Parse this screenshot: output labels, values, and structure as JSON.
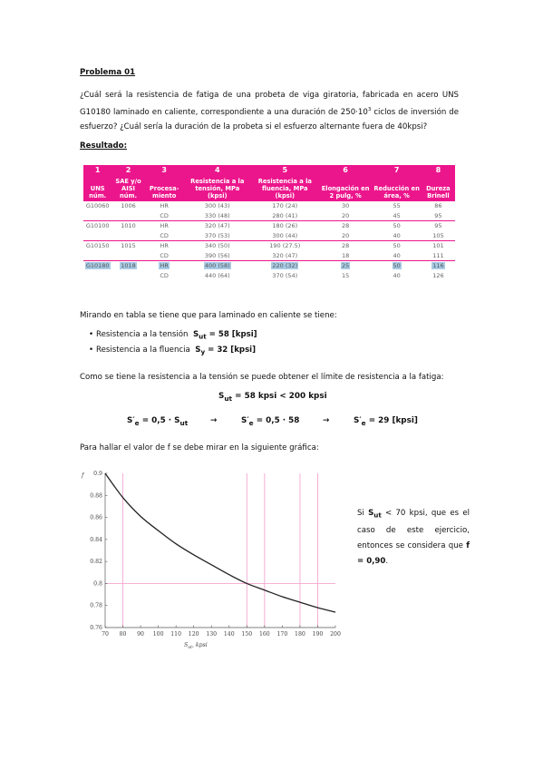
{
  "title": "Problema 01",
  "question": {
    "part1": "¿Cuál será la resistencia de fatiga de una probeta de viga giratoria, fabricada en acero UNS G10180 laminado en caliente, correspondiente a una duración de 250·10",
    "sup": "3",
    "part2": " ciclos de inversión de esfuerzo? ¿Cuál sería la duración de la probeta si el esfuerzo alternante fuera de 40kpsi?"
  },
  "result_heading": "Resultado:",
  "table": {
    "numbers": [
      "1",
      "2",
      "3",
      "4",
      "5",
      "6",
      "7",
      "8"
    ],
    "headers": [
      "UNS núm.",
      "SAE y/o AISI núm.",
      "Procesa-miento",
      "Resistencia a la tensión, MPa (kpsi)",
      "Resistencia a la fluencia, MPa (kpsi)",
      "Elongación en 2 pulg, %",
      "Reducción en área, %",
      "Dureza Brinell"
    ],
    "rows": [
      [
        "G10060",
        "1006",
        "HR",
        "300 (43)",
        "170 (24)",
        "30",
        "55",
        "86"
      ],
      [
        "",
        "",
        "CD",
        "330 (48)",
        "280 (41)",
        "20",
        "45",
        "95"
      ],
      [
        "G10100",
        "1010",
        "HR",
        "320 (47)",
        "180 (26)",
        "28",
        "50",
        "95"
      ],
      [
        "",
        "",
        "CD",
        "370 (53)",
        "300 (44)",
        "20",
        "40",
        "105"
      ],
      [
        "G10150",
        "1015",
        "HR",
        "340 (50)",
        "190 (27.5)",
        "28",
        "50",
        "101"
      ],
      [
        "",
        "",
        "CD",
        "390 (56)",
        "320 (47)",
        "18",
        "40",
        "111"
      ],
      [
        "G10180",
        "1018",
        "HR",
        "400 (58)",
        "220 (32)",
        "25",
        "50",
        "116"
      ],
      [
        "",
        "",
        "CD",
        "440 (64)",
        "370 (54)",
        "15",
        "40",
        "126"
      ]
    ]
  },
  "text_lookup": "Mirando en tabla se tiene que para laminado en caliente se tiene:",
  "bullets": [
    {
      "label": "Resistencia a la tensión",
      "sym": "S",
      "sub": "ut",
      "val": " = 58 [kpsi]"
    },
    {
      "label": "Resistencia a la fluencia",
      "sym": "S",
      "sub": "y",
      "val": " = 32 [kpsi]"
    }
  ],
  "text_fatigue": "Como se tiene la resistencia a la tensión se puede obtener el límite de resistencia a la fatiga:",
  "eq1": {
    "sym": "S",
    "sub": "ut",
    "rest": " = 58 kpsi  < 200 kpsi"
  },
  "eq2": [
    {
      "lhs": "S′",
      "sub": "e",
      "rhs": " = 0,5 · S",
      "rsub": "ut"
    },
    {
      "lhs": "S′",
      "sub": "e",
      "rhs": " = 0,5 · 58",
      "rsub": ""
    },
    {
      "lhs": "S′",
      "sub": "e",
      "rhs": " = 29 [kpsi]",
      "rsub": ""
    }
  ],
  "arrow": "→",
  "text_graph": "Para hallar el valor de f se debe mirar en la siguiente gráfica:",
  "chart_data": {
    "type": "line",
    "ylabel": "f",
    "xlabel": "S_ut, kpsi",
    "xlabel_main": "S",
    "xlabel_sub": "ut",
    "xlabel_unit": ", kpsi",
    "xlim": [
      70,
      200
    ],
    "ylim": [
      0.76,
      0.9
    ],
    "x_ticks": [
      70,
      80,
      90,
      100,
      110,
      120,
      130,
      140,
      150,
      160,
      170,
      180,
      190,
      200
    ],
    "y_ticks": [
      "0.76",
      "0.78",
      "0.8",
      "0.82",
      "0.84",
      "0.86",
      "0.88",
      "0.9"
    ],
    "highlight_x": [
      80,
      150,
      160,
      180,
      190
    ],
    "highlight_y": [
      0.8
    ],
    "curve": {
      "x": [
        70,
        80,
        90,
        100,
        110,
        120,
        130,
        140,
        150,
        160,
        170,
        180,
        190,
        200
      ],
      "y": [
        0.9,
        0.878,
        0.861,
        0.848,
        0.836,
        0.826,
        0.817,
        0.808,
        0.8,
        0.794,
        0.788,
        0.783,
        0.778,
        0.774
      ]
    },
    "colors": {
      "curve": "#222222",
      "highlight": "#f5a6cf",
      "axis": "#555555"
    }
  },
  "note": {
    "pre": "Si ",
    "sym": "S",
    "sub": "ut",
    "mid": " < 70 kpsi, que es el caso de este ejercicio, entonces se considera que ",
    "eq": "f = 0,90",
    "end": "."
  },
  "colors": {
    "table_header": "#ec168c",
    "highlight": "#a9cbe6"
  }
}
